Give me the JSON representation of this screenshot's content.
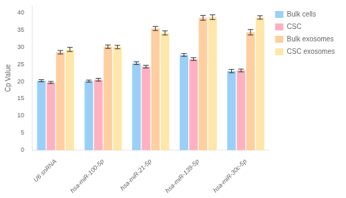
{
  "chart_data": {
    "type": "bar",
    "categories": [
      "U6 snRNA",
      "hsa-miR-100-5p",
      "hsa-miR-21-5p",
      "hsa-miR-139-5p",
      "hsa-miR-30c-5p"
    ],
    "series": [
      {
        "name": "Bulk cells",
        "values": [
          20.2,
          20.1,
          25.3,
          27.7,
          23.0
        ],
        "errors": [
          0.3,
          0.3,
          0.4,
          0.4,
          0.5
        ]
      },
      {
        "name": "CSC",
        "values": [
          19.7,
          20.5,
          24.3,
          26.5,
          23.2
        ],
        "errors": [
          0.3,
          0.4,
          0.4,
          0.4,
          0.4
        ]
      },
      {
        "name": "Bulk exosomes",
        "values": [
          28.5,
          30.1,
          35.4,
          38.5,
          34.3
        ],
        "errors": [
          0.5,
          0.5,
          0.6,
          0.7,
          0.8
        ]
      },
      {
        "name": "CSC exosomes",
        "values": [
          29.3,
          30.0,
          34.1,
          38.7,
          38.6
        ],
        "errors": [
          0.6,
          0.5,
          0.6,
          0.7,
          0.5
        ]
      }
    ],
    "ylabel": "Cp Value",
    "ylim": [
      0,
      42
    ],
    "yticks": [
      0,
      5,
      10,
      15,
      20,
      25,
      30,
      35,
      40
    ],
    "grid": false,
    "legend": "right"
  }
}
